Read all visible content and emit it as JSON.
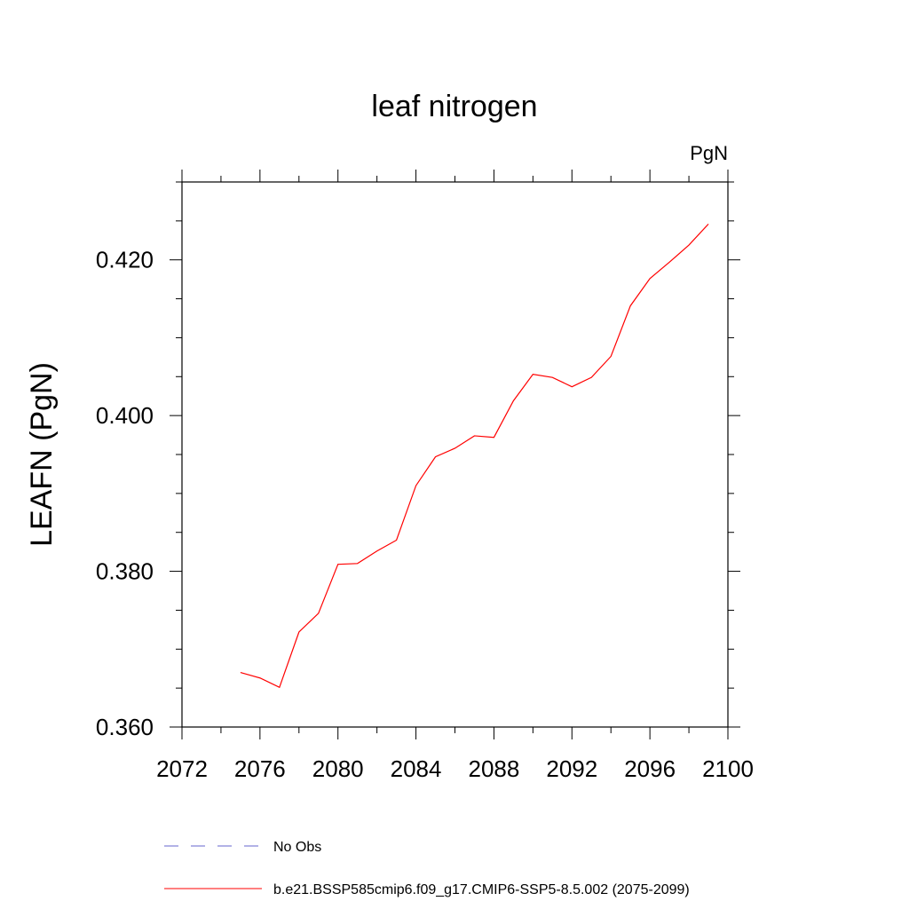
{
  "chart_data": {
    "type": "line",
    "title": "leaf nitrogen",
    "units": "PgN",
    "ylabel": "LEAFN  (PgN)",
    "xlabel": "",
    "xlim": [
      2072,
      2100
    ],
    "ylim": [
      0.36,
      0.43
    ],
    "x_ticks": [
      2072,
      2076,
      2080,
      2084,
      2088,
      2092,
      2096,
      2100
    ],
    "x_tick_labels": [
      "2072",
      "2076",
      "2080",
      "2084",
      "2088",
      "2092",
      "2096",
      "2100"
    ],
    "y_ticks": [
      0.36,
      0.38,
      0.4,
      0.42
    ],
    "y_tick_labels": [
      "0.360",
      "0.380",
      "0.400",
      "0.420"
    ],
    "y_minor_step": 0.005,
    "x_minor_step": 2,
    "grid": false,
    "legend_position": "bottom",
    "series": [
      {
        "name": "No Obs",
        "color": "#6666cc",
        "style": "dashed",
        "x": [],
        "values": []
      },
      {
        "name": "b.e21.BSSP585cmip6.f09_g17.CMIP6-SSP5-8.5.002 (2075-2099)",
        "color": "#ff0000",
        "style": "solid",
        "x": [
          2075,
          2076,
          2077,
          2078,
          2079,
          2080,
          2081,
          2082,
          2083,
          2084,
          2085,
          2086,
          2087,
          2088,
          2089,
          2090,
          2091,
          2092,
          2093,
          2094,
          2095,
          2096,
          2097,
          2098,
          2099
        ],
        "values": [
          0.367,
          0.3663,
          0.3651,
          0.3722,
          0.3746,
          0.3809,
          0.381,
          0.3826,
          0.384,
          0.391,
          0.3947,
          0.3958,
          0.3974,
          0.3972,
          0.4019,
          0.4053,
          0.4049,
          0.4037,
          0.4049,
          0.4076,
          0.4141,
          0.4176,
          0.4197,
          0.4219,
          0.4246
        ]
      }
    ]
  }
}
